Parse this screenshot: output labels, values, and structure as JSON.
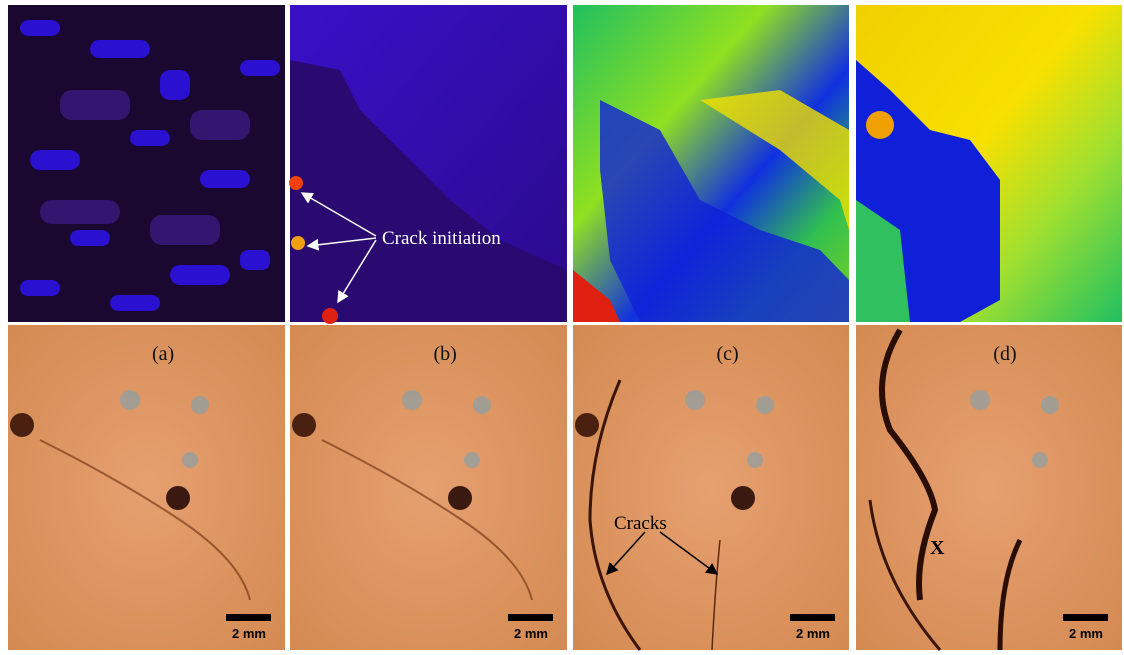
{
  "panels": [
    {
      "label": "(a)",
      "scale_bar": "2 mm"
    },
    {
      "label": "(b)",
      "scale_bar": "2 mm"
    },
    {
      "label": "(c)",
      "scale_bar": "2 mm"
    },
    {
      "label": "(d)",
      "scale_bar": "2 mm"
    }
  ],
  "annotations": {
    "crack_initiation": "Crack initiation",
    "cracks": "Cracks",
    "x_mark": "X"
  }
}
